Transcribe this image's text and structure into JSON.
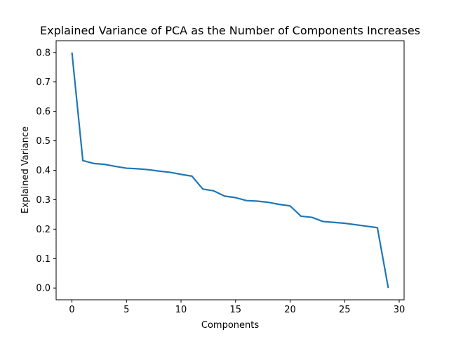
{
  "chart_data": {
    "type": "line",
    "title": "Explained Variance of PCA as the Number of Components Increases",
    "xlabel": "Components",
    "ylabel": "Explained Variance",
    "xlim": [
      -1.45,
      30.45
    ],
    "ylim": [
      -0.04,
      0.84
    ],
    "xticks": [
      0,
      5,
      10,
      15,
      20,
      25,
      30
    ],
    "yticks": [
      0.0,
      0.1,
      0.2,
      0.3,
      0.4,
      0.5,
      0.6,
      0.7,
      0.8
    ],
    "grid": false,
    "line_color": "#1f77b4",
    "series": [
      {
        "x": [
          0,
          1,
          2,
          3,
          4,
          5,
          6,
          7,
          8,
          9,
          10,
          11,
          12,
          13,
          14,
          15,
          16,
          17,
          18,
          19,
          20,
          21,
          22,
          23,
          24,
          25,
          26,
          27,
          28,
          29
        ],
        "values": [
          0.8,
          0.433,
          0.423,
          0.42,
          0.413,
          0.407,
          0.405,
          0.402,
          0.397,
          0.393,
          0.386,
          0.38,
          0.336,
          0.33,
          0.312,
          0.307,
          0.297,
          0.295,
          0.291,
          0.284,
          0.279,
          0.244,
          0.24,
          0.226,
          0.223,
          0.22,
          0.215,
          0.21,
          0.205,
          0.0
        ]
      }
    ]
  }
}
